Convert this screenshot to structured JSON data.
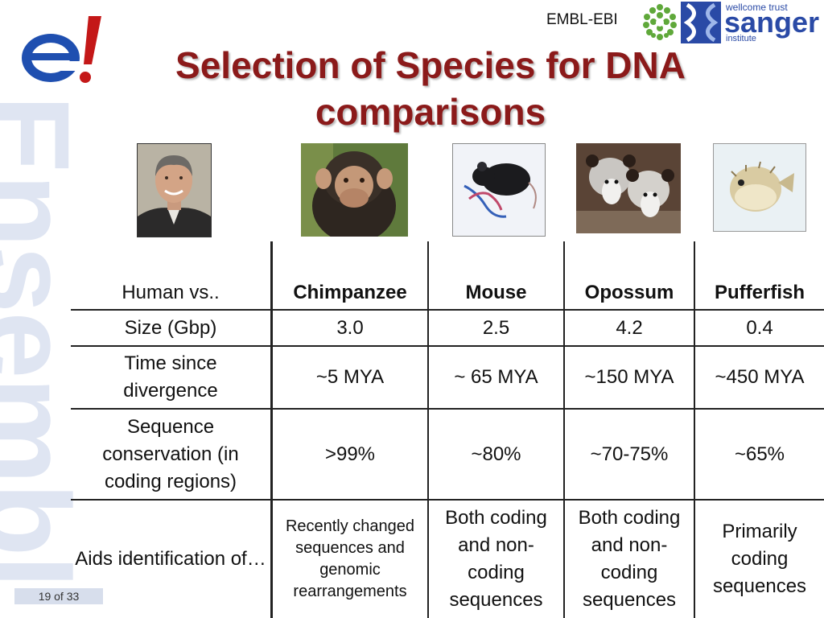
{
  "watermark": "Ensembl",
  "header": {
    "ebi_label": "EMBL-EBI",
    "sanger": {
      "top": "wellcome trust",
      "main": "sanger",
      "bottom": "institute"
    },
    "logo_icon": "ensembl-e-icon"
  },
  "title": {
    "line1": "Selection of Species for DNA",
    "line2": "comparisons"
  },
  "photos": [
    "human-photo",
    "chimpanzee-photo",
    "mouse-photo",
    "opossum-photo",
    "pufferfish-photo"
  ],
  "table": {
    "columns": [
      "Human vs..",
      "Chimpanzee",
      "Mouse",
      "Opossum",
      "Pufferfish"
    ],
    "rows": [
      {
        "label": "Size (Gbp)",
        "values": [
          "3.0",
          "2.5",
          "4.2",
          "0.4"
        ]
      },
      {
        "label": "Time since divergence",
        "values": [
          "~5 MYA",
          "~ 65 MYA",
          "~150 MYA",
          "~450 MYA"
        ]
      },
      {
        "label": "Sequence conservation (in coding regions)",
        "values": [
          ">99%",
          "~80%",
          "~70-75%",
          "~65%"
        ]
      },
      {
        "label": "Aids identification of…",
        "values": [
          "Recently changed sequences and genomic rearrangements",
          "Both coding and non-coding sequences",
          "Both coding and non-coding sequences",
          "Primarily coding sequences"
        ]
      }
    ]
  },
  "page_number": "19 of 33"
}
